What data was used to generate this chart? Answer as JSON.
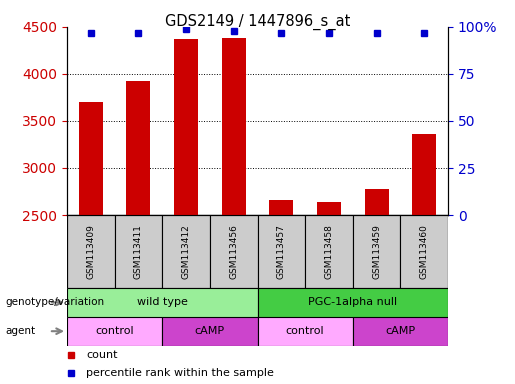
{
  "title": "GDS2149 / 1447896_s_at",
  "samples": [
    "GSM113409",
    "GSM113411",
    "GSM113412",
    "GSM113456",
    "GSM113457",
    "GSM113458",
    "GSM113459",
    "GSM113460"
  ],
  "counts": [
    3700,
    3920,
    4370,
    4380,
    2660,
    2640,
    2780,
    3360
  ],
  "percentile_ranks": [
    97,
    97,
    99,
    98,
    97,
    97,
    97,
    97
  ],
  "ylim_left": [
    2500,
    4500
  ],
  "ylim_right": [
    0,
    100
  ],
  "yticks_left": [
    2500,
    3000,
    3500,
    4000,
    4500
  ],
  "yticks_right": [
    0,
    25,
    50,
    75,
    100
  ],
  "bar_color": "#cc0000",
  "dot_color": "#0000cc",
  "grid_color": "#000000",
  "left_tick_color": "#cc0000",
  "right_tick_color": "#0000cc",
  "genotype_groups": [
    {
      "label": "wild type",
      "start": 0,
      "end": 4,
      "color": "#99ee99"
    },
    {
      "label": "PGC-1alpha null",
      "start": 4,
      "end": 8,
      "color": "#44cc44"
    }
  ],
  "agent_groups": [
    {
      "label": "control",
      "start": 0,
      "end": 2,
      "color": "#ffaaff"
    },
    {
      "label": "cAMP",
      "start": 2,
      "end": 4,
      "color": "#cc44cc"
    },
    {
      "label": "control",
      "start": 4,
      "end": 6,
      "color": "#ffaaff"
    },
    {
      "label": "cAMP",
      "start": 6,
      "end": 8,
      "color": "#cc44cc"
    }
  ],
  "legend_count_color": "#cc0000",
  "legend_dot_color": "#0000cc",
  "sample_box_color": "#cccccc",
  "genotype_label": "genotype/variation",
  "agent_label": "agent",
  "legend_count_label": "count",
  "legend_dot_label": "percentile rank within the sample"
}
